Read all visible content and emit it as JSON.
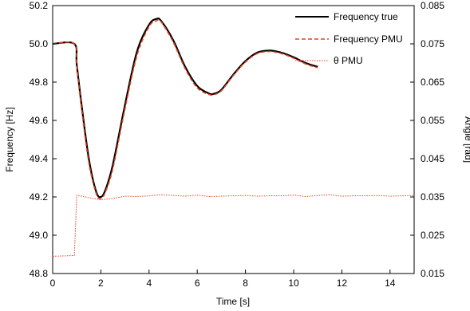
{
  "chart_data": {
    "type": "line",
    "xlabel": "Time [s]",
    "ylabel_left": "Frequency [Hz]",
    "ylabel_right": "Angle [rad]",
    "xlim": [
      0,
      15
    ],
    "ylim_left": [
      48.8,
      50.2
    ],
    "ylim_right": [
      0.015,
      0.085
    ],
    "x_ticks": [
      "0",
      "2",
      "4",
      "6",
      "8",
      "10",
      "12",
      "14"
    ],
    "y_left_ticks": [
      "48.8",
      "49.0",
      "49.2",
      "49.4",
      "49.6",
      "49.8",
      "50.0",
      "50.2"
    ],
    "y_right_ticks": [
      "0.015",
      "0.025",
      "0.035",
      "0.045",
      "0.055",
      "0.065",
      "0.075",
      "0.085"
    ],
    "grid": false,
    "legend_position": "top-right",
    "series": [
      {
        "name": "Frequency true",
        "axis": "left",
        "style": "solid",
        "color": "#000000",
        "x": [
          0,
          0.9,
          1.0,
          1.2,
          1.5,
          1.8,
          2.0,
          2.2,
          2.5,
          3.0,
          3.5,
          4.0,
          4.3,
          4.5,
          5.0,
          5.5,
          6.0,
          6.5,
          6.7,
          7.0,
          7.5,
          8.0,
          8.5,
          9.0,
          9.3,
          9.6,
          10.0,
          10.5,
          11.0
        ],
        "y": [
          50.0,
          50.0,
          49.89,
          49.68,
          49.4,
          49.23,
          49.2,
          49.24,
          49.37,
          49.68,
          49.96,
          50.1,
          50.13,
          50.12,
          50.02,
          49.88,
          49.78,
          49.74,
          49.74,
          49.76,
          49.84,
          49.91,
          49.955,
          49.965,
          49.96,
          49.95,
          49.93,
          49.9,
          49.88
        ]
      },
      {
        "name": "Frequency PMU",
        "axis": "left",
        "style": "dashed",
        "color": "#e8401c",
        "x": [
          0,
          0.9,
          1.0,
          1.2,
          1.5,
          1.8,
          2.0,
          2.2,
          2.5,
          3.0,
          3.5,
          4.0,
          4.3,
          4.5,
          5.0,
          5.5,
          6.0,
          6.5,
          6.7,
          7.0,
          7.5,
          8.0,
          8.5,
          9.0,
          9.3,
          9.6,
          10.0,
          10.5,
          11.0
        ],
        "y": [
          50.0,
          50.0,
          49.88,
          49.66,
          49.38,
          49.22,
          49.19,
          49.23,
          49.35,
          49.66,
          49.94,
          50.09,
          50.12,
          50.115,
          50.01,
          49.87,
          49.77,
          49.735,
          49.735,
          49.755,
          49.835,
          49.905,
          49.95,
          49.96,
          49.955,
          49.945,
          49.925,
          49.895,
          49.875
        ]
      },
      {
        "name": "θ PMU",
        "axis": "right",
        "style": "dotted",
        "color": "#e8401c",
        "x": [
          0,
          0.9,
          1.0,
          1.5,
          2.0,
          2.5,
          3.0,
          3.5,
          4.0,
          4.5,
          5.0,
          5.5,
          6.0,
          6.5,
          7.0,
          7.5,
          8.0,
          8.5,
          9.0,
          9.5,
          10.0,
          10.5,
          11.0,
          11.5,
          12.0,
          12.5,
          13.0,
          13.5,
          14.0,
          14.5,
          15.0
        ],
        "y": [
          0.0195,
          0.0197,
          0.0355,
          0.0348,
          0.0343,
          0.0346,
          0.0352,
          0.0351,
          0.0353,
          0.0356,
          0.0354,
          0.0352,
          0.0355,
          0.0351,
          0.0352,
          0.0353,
          0.0354,
          0.0352,
          0.0353,
          0.0353,
          0.0355,
          0.0351,
          0.0354,
          0.0356,
          0.0352,
          0.0353,
          0.0353,
          0.0354,
          0.0352,
          0.0353,
          0.0354
        ]
      }
    ]
  }
}
